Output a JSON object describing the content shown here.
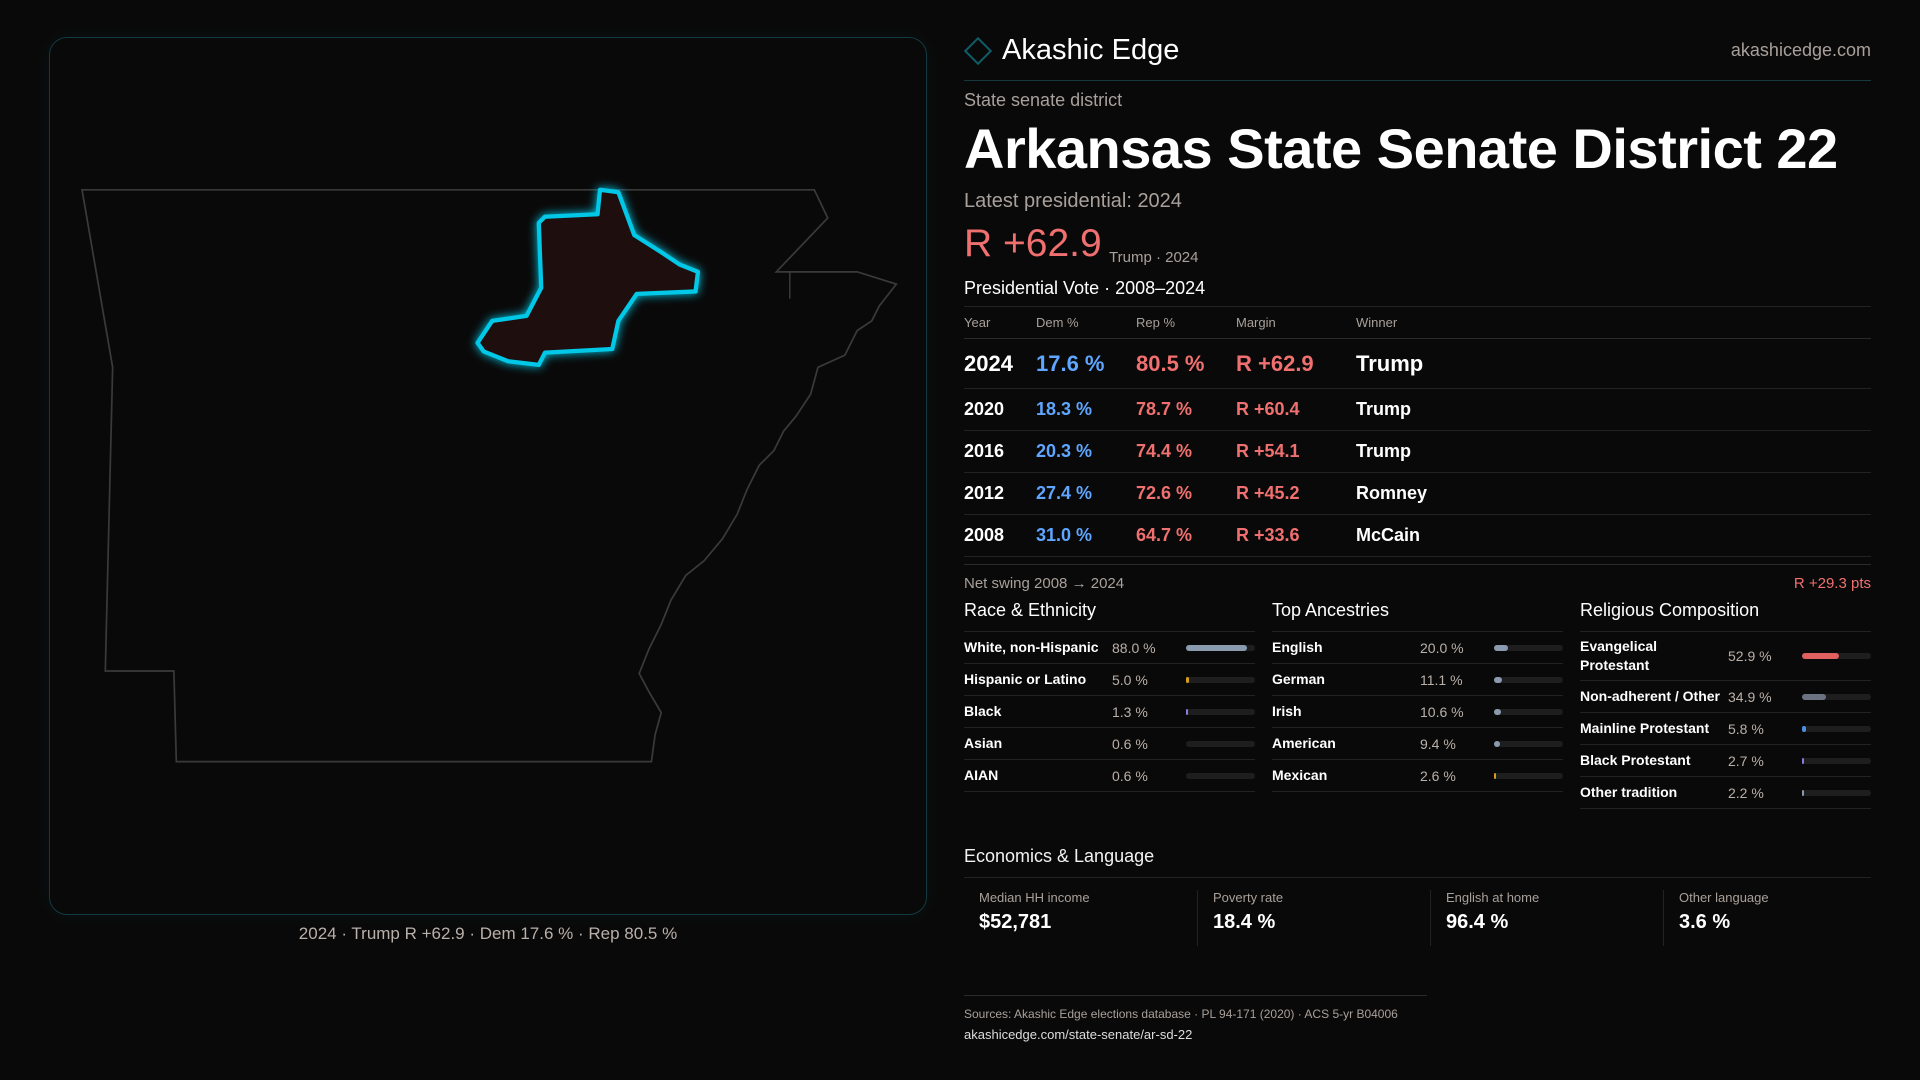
{
  "brand": {
    "name": "Akashic Edge",
    "site": "akashicedge.com"
  },
  "district": {
    "kind": "State senate district",
    "title": "Arkansas State Senate District 22",
    "latest": "Latest presidential: 2024",
    "margin": "R +62.9",
    "margin_sub": "Trump · 2024"
  },
  "map": {
    "caption": "2024 · Trump R +62.9 · Dem 17.6 % · Rep 80.5 %"
  },
  "vote": {
    "title": "Presidential Vote · 2008–2024",
    "headers": [
      "Year",
      "Dem %",
      "Rep %",
      "Margin",
      "Winner"
    ],
    "rows": [
      [
        "2024",
        "17.6 %",
        "80.5 %",
        "R +62.9",
        "Trump"
      ],
      [
        "2020",
        "18.3 %",
        "78.7 %",
        "R +60.4",
        "Trump"
      ],
      [
        "2016",
        "20.3 %",
        "74.4 %",
        "R +54.1",
        "Trump"
      ],
      [
        "2012",
        "27.4 %",
        "72.6 %",
        "R +45.2",
        "Romney"
      ],
      [
        "2008",
        "31.0 %",
        "64.7 %",
        "R +33.6",
        "McCain"
      ]
    ],
    "swing_label": "Net swing 2008 → 2024",
    "swing_value": "R +29.3 pts"
  },
  "race": {
    "title": "Race & Ethnicity",
    "items": [
      {
        "label": "White, non-Hispanic",
        "value": "88.0 %",
        "pct": 88.0,
        "color": "#8a9bb0"
      },
      {
        "label": "Hispanic or Latino",
        "value": "5.0 %",
        "pct": 5.0,
        "color": "#d99a20"
      },
      {
        "label": "Black",
        "value": "1.3 %",
        "pct": 1.3,
        "color": "#8b7be0"
      },
      {
        "label": "Asian",
        "value": "0.6 %",
        "pct": 0.6,
        "color": "#2a2a2a"
      },
      {
        "label": "AIAN",
        "value": "0.6 %",
        "pct": 0.6,
        "color": "#2a2a2a"
      }
    ]
  },
  "ancestry": {
    "title": "Top Ancestries",
    "items": [
      {
        "label": "English",
        "value": "20.0 %",
        "pct": 20.0,
        "color": "#8a9bb0"
      },
      {
        "label": "German",
        "value": "11.1 %",
        "pct": 11.1,
        "color": "#8a9bb0"
      },
      {
        "label": "Irish",
        "value": "10.6 %",
        "pct": 10.6,
        "color": "#8a9bb0"
      },
      {
        "label": "American",
        "value": "9.4 %",
        "pct": 9.4,
        "color": "#8a9bb0"
      },
      {
        "label": "Mexican",
        "value": "2.6 %",
        "pct": 2.6,
        "color": "#d99a20"
      }
    ]
  },
  "religion": {
    "title": "Religious Composition",
    "items": [
      {
        "label": "Evangelical Protestant",
        "value": "52.9 %",
        "pct": 52.9,
        "color": "#e06060"
      },
      {
        "label": "Non-adherent / Other",
        "value": "34.9 %",
        "pct": 34.9,
        "color": "#6b7280"
      },
      {
        "label": "Mainline Protestant",
        "value": "5.8 %",
        "pct": 5.8,
        "color": "#4a8fe0"
      },
      {
        "label": "Black Protestant",
        "value": "2.7 %",
        "pct": 2.7,
        "color": "#8b7be0"
      },
      {
        "label": "Other tradition",
        "value": "2.2 %",
        "pct": 2.2,
        "color": "#8a9bb0"
      }
    ]
  },
  "econ": {
    "title": "Economics & Language",
    "items": [
      {
        "label": "Median HH income",
        "value": "$52,781"
      },
      {
        "label": "Poverty rate",
        "value": "18.4 %"
      },
      {
        "label": "English at home",
        "value": "96.4 %"
      },
      {
        "label": "Other language",
        "value": "3.6 %"
      }
    ]
  },
  "footer": {
    "sources": "Sources: Akashic Edge elections database · PL 94-171 (2020) · ACS 5-yr B04006",
    "url": "akashicedge.com/state-senate/ar-sd-22"
  },
  "colors": {
    "accent": "#00c8e6",
    "rep": "#f07070",
    "dem": "#5ea6ff"
  }
}
